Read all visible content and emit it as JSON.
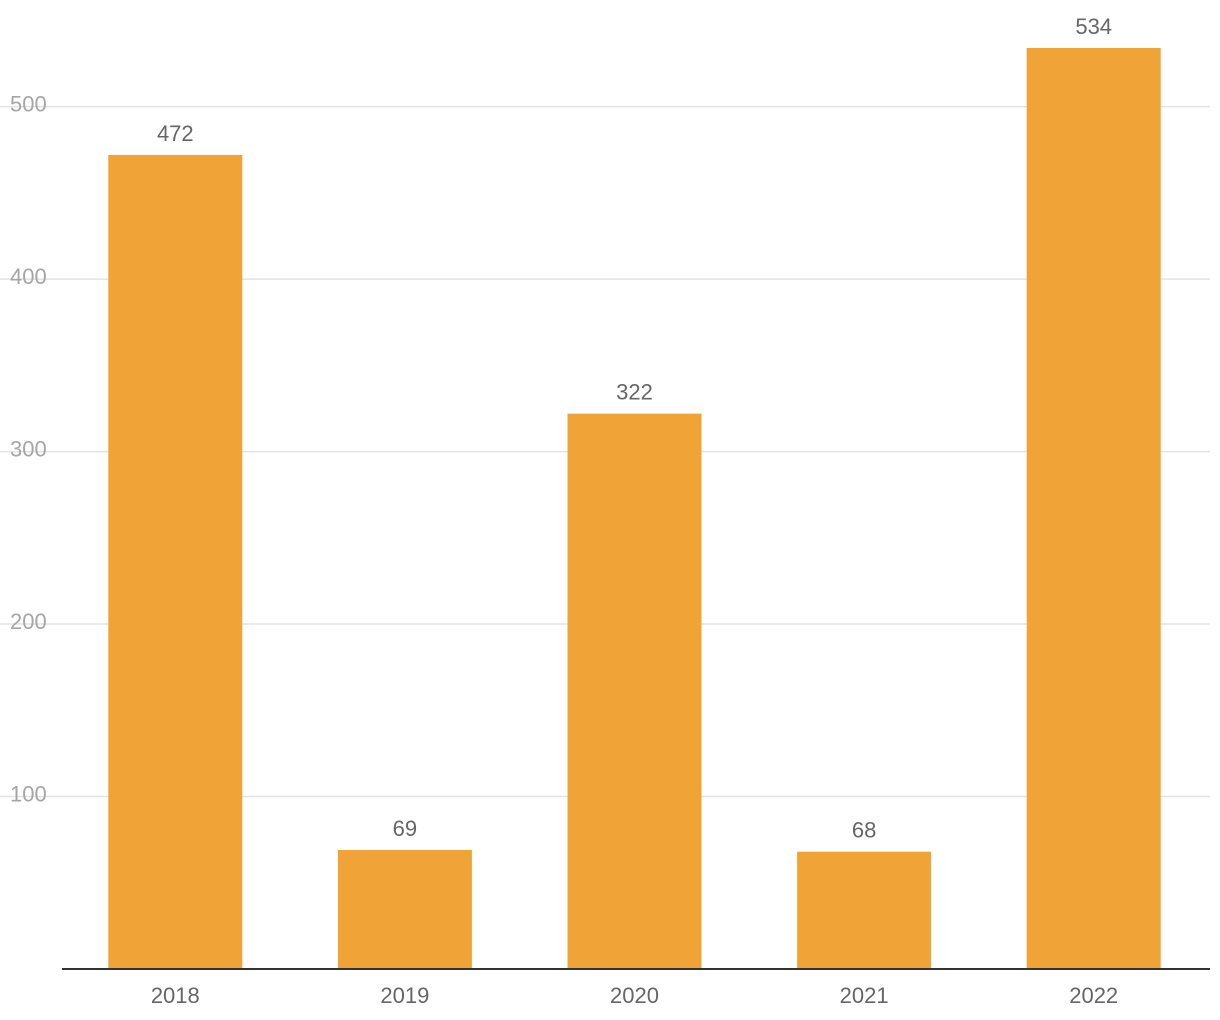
{
  "chart_data": {
    "type": "bar",
    "title": "",
    "xlabel": "",
    "ylabel": "",
    "categories": [
      "2018",
      "2019",
      "2020",
      "2021",
      "2022"
    ],
    "values": [
      472,
      69,
      322,
      68,
      534
    ],
    "data_labels": [
      "472",
      "69",
      "322",
      "68",
      "534"
    ],
    "y_ticks": [
      100,
      200,
      300,
      400,
      500
    ],
    "y_tick_labels": [
      "100",
      "200",
      "300",
      "400",
      "500"
    ],
    "ylim": [
      0,
      534
    ],
    "grid": true,
    "legend": "none",
    "colors": {
      "bar": "#f0a337",
      "gridline": "#e3e3e3",
      "baseline": "#333333",
      "tick_text": "#a6a6a6",
      "label_text": "#666666"
    }
  }
}
